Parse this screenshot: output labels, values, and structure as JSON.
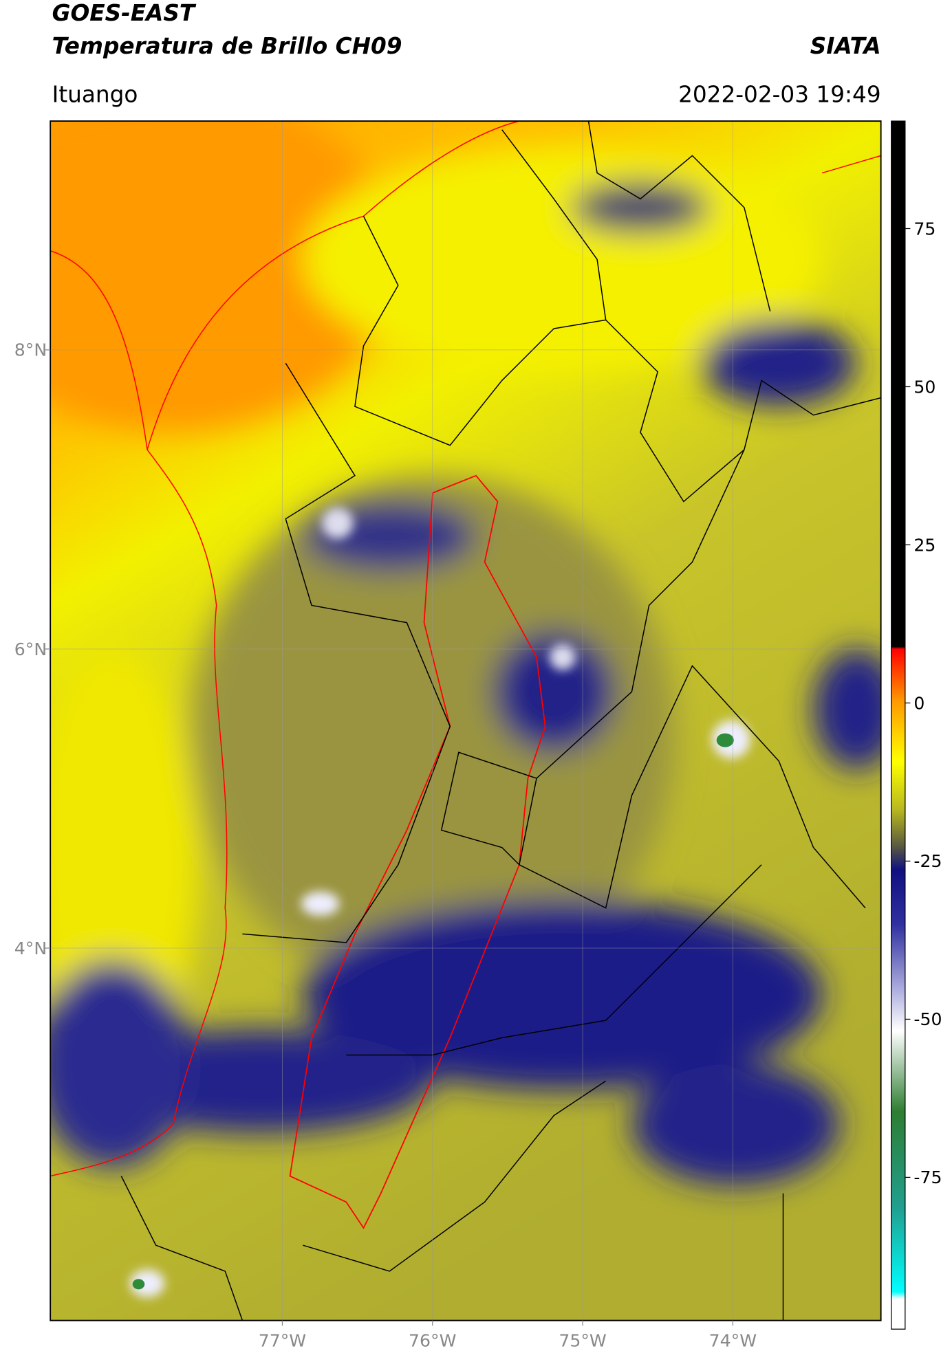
{
  "header": {
    "title": "GOES-EAST",
    "subtitle": "Temperatura de Brillo CH09",
    "source": "SIATA",
    "location": "Ituango",
    "datetime": "2022-02-03 19:49"
  },
  "map": {
    "lonlim": [
      -78.545,
      -73.014
    ],
    "latlim": [
      1.51,
      9.53
    ],
    "lon_ticks": [
      {
        "value": -77,
        "label": "77°W"
      },
      {
        "value": -76,
        "label": "76°W"
      },
      {
        "value": -75,
        "label": "75°W"
      },
      {
        "value": -74,
        "label": "74°W"
      }
    ],
    "lat_ticks": [
      {
        "value": 8,
        "label": "8°N"
      },
      {
        "value": 6,
        "label": "6°N"
      },
      {
        "value": 4,
        "label": "4°N"
      }
    ]
  },
  "colorbar": {
    "lim": [
      -99,
      92
    ],
    "ticks": [
      75,
      50,
      25,
      0,
      -25,
      -50,
      -75
    ]
  }
}
